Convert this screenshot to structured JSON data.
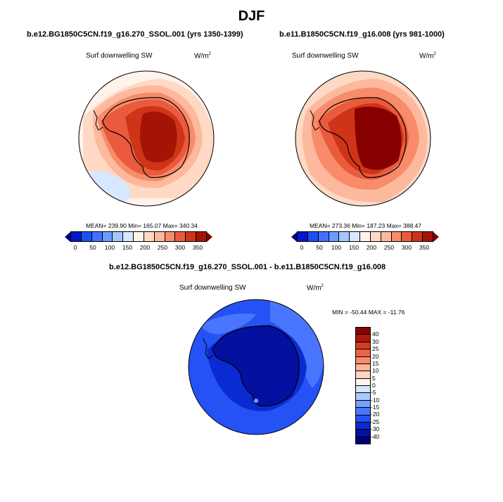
{
  "title": "DJF",
  "panels": [
    {
      "subtitle": "b.e12.BG1850C5CN.f19_g16.270_SSOL.001 (yrs 1350-1399)",
      "var_label": "Surf downwelling SW",
      "units": "W/m",
      "units_sup": "2",
      "stats": "MEAN= 239.90  Min= 165.07  Max= 340.34",
      "colorbar_ticks": [
        "0",
        "50",
        "100",
        "150",
        "200",
        "250",
        "300",
        "350"
      ]
    },
    {
      "subtitle": "b.e11.B1850C5CN.f19_g16.008 (yrs 981-1000)",
      "var_label": "Surf downwelling SW",
      "units": "W/m",
      "units_sup": "2",
      "stats": "MEAN= 273.36  Min= 187.23  Max= 388.47",
      "colorbar_ticks": [
        "0",
        "50",
        "100",
        "150",
        "200",
        "250",
        "300",
        "350"
      ]
    }
  ],
  "diff": {
    "subtitle": "b.e12.BG1850C5CN.f19_g16.270_SSOL.001 - b.e11.B1850C5CN.f19_g16.008",
    "var_label": "Surf downwelling SW",
    "units": "W/m",
    "units_sup": "2",
    "stats": "MIN = -50.44 MAX = -11.76",
    "colorbar_ticks": [
      "40",
      "30",
      "25",
      "20",
      "15",
      "10",
      "5",
      "0",
      "-5",
      "-10",
      "-15",
      "-20",
      "-25",
      "-30",
      "-40"
    ]
  },
  "colors": {
    "abs_scale": [
      "#00007f",
      "#0018c8",
      "#1a4ff5",
      "#3f73ff",
      "#6b9cff",
      "#a5c6ff",
      "#d5e8ff",
      "#fff3eb",
      "#ffd9c4",
      "#fcb99e",
      "#f88b69",
      "#ea5b3d",
      "#cf3419",
      "#a41405",
      "#860000"
    ],
    "diff_scale": [
      "#8b0000",
      "#b2170b",
      "#d33c1f",
      "#ea6443",
      "#f68d6d",
      "#fcb597",
      "#ffd5c2",
      "#fff4eb",
      "#d5e6ff",
      "#a9c8ff",
      "#769fff",
      "#4a75ff",
      "#2552f4",
      "#0a2bd2",
      "#04109f",
      "#000075"
    ]
  }
}
